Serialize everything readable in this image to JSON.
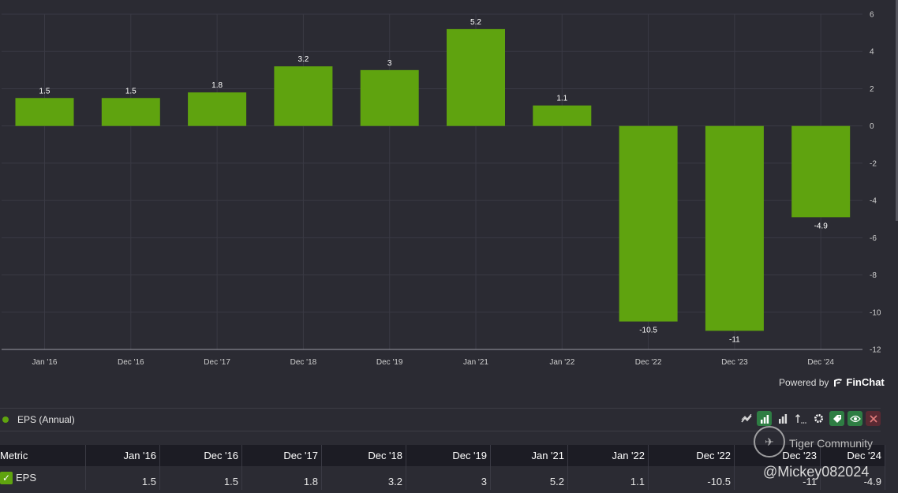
{
  "chart_data": {
    "type": "bar",
    "categories": [
      "Jan '16",
      "Dec '16",
      "Dec '17",
      "Dec '18",
      "Dec '19",
      "Jan '21",
      "Jan '22",
      "Dec '22",
      "Dec '23",
      "Dec '24"
    ],
    "series": [
      {
        "name": "EPS (Annual)",
        "values": [
          1.5,
          1.5,
          1.8,
          3.2,
          3,
          5.2,
          1.1,
          -10.5,
          -11,
          -4.9
        ]
      }
    ],
    "data_labels": [
      "1.5",
      "1.5",
      "1.8",
      "3.2",
      "3",
      "5.2",
      "1.1",
      "-10.5",
      "-11",
      "-4.9"
    ],
    "y_ticks": [
      "6",
      "4",
      "2",
      "0",
      "-2",
      "-4",
      "-6",
      "-8",
      "-10",
      "-12"
    ],
    "ylim": [
      -12,
      6
    ],
    "bar_color": "#5fa30f",
    "grid_color": "#3a3a44"
  },
  "footer": {
    "powered_by": "Powered by",
    "brand": "FinChat"
  },
  "series_row": {
    "name": "EPS (Annual)",
    "dot_color": "#5fa30f"
  },
  "toolbar": {
    "icons": [
      "line-chart-icon",
      "bar-chart-icon",
      "bar-chart-outline-icon",
      "sort-icon",
      "gear-icon",
      "tag-icon",
      "eye-icon",
      "close-icon"
    ]
  },
  "table": {
    "header_first": "Metric",
    "columns": [
      "Jan '16",
      "Dec '16",
      "Dec '17",
      "Dec '18",
      "Dec '19",
      "Jan '21",
      "Jan '22",
      "Dec '22",
      "Dec '23",
      "Dec '24"
    ],
    "rows": [
      {
        "metric": "EPS",
        "values": [
          "1.5",
          "1.5",
          "1.8",
          "3.2",
          "3",
          "5.2",
          "1.1",
          "-10.5",
          "-11",
          "-4.9"
        ]
      }
    ]
  },
  "watermark": {
    "community": "Tiger Community",
    "handle": "@Mickey082024"
  }
}
